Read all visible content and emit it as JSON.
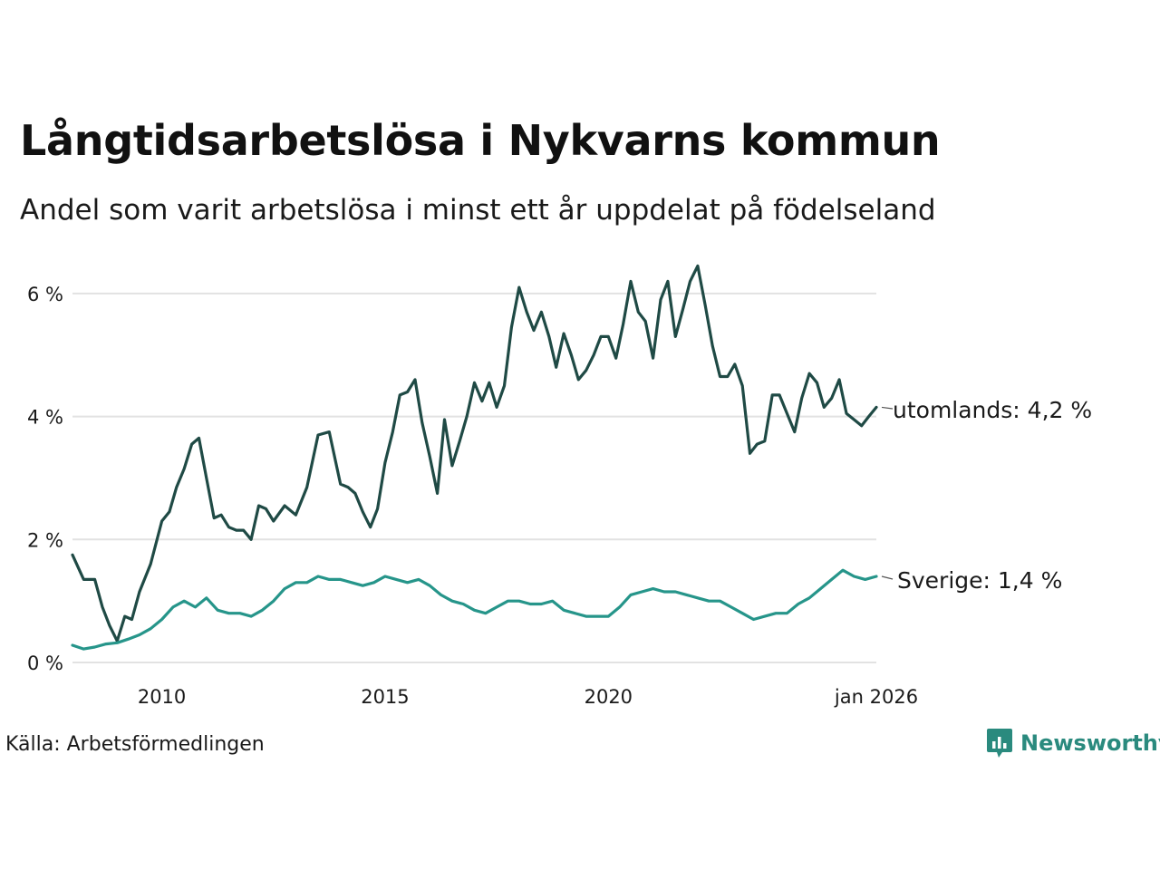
{
  "title": "Långtidsarbetslösa i Nykvarns kommun",
  "subtitle": "Andel som varit arbetslösa i minst ett år uppdelat på födelseland",
  "source": "Källa: Arbetsförmedlingen",
  "brand": {
    "name": "Newsworthy",
    "icon": "bar-chart-speech-bubble-icon",
    "color": "#2a8a7e"
  },
  "chart_data": {
    "type": "line",
    "title": "Långtidsarbetslösa i Nykvarns kommun",
    "subtitle": "Andel som varit arbetslösa i minst ett år uppdelat på födelseland",
    "xlabel": "",
    "ylabel": "",
    "x_unit": "year",
    "xlim": [
      2008.0,
      2026.0
    ],
    "ylim": [
      0,
      6.5
    ],
    "grid": true,
    "x_ticks": [
      {
        "value": 2010,
        "label": "2010"
      },
      {
        "value": 2015,
        "label": "2015"
      },
      {
        "value": 2020,
        "label": "2020"
      },
      {
        "value": 2026,
        "label": "jan 2026"
      }
    ],
    "y_ticks": [
      {
        "value": 0,
        "label": "0 %"
      },
      {
        "value": 2,
        "label": "2 %"
      },
      {
        "value": 4,
        "label": "4 %"
      },
      {
        "value": 6,
        "label": "6 %"
      }
    ],
    "series": [
      {
        "name": "utomlands",
        "label": "utomlands: 4,2 %",
        "color": "#1f4a45",
        "x": [
          2008.0,
          2008.25,
          2008.5,
          2008.67,
          2008.83,
          2009.0,
          2009.17,
          2009.33,
          2009.5,
          2009.75,
          2010.0,
          2010.17,
          2010.33,
          2010.5,
          2010.67,
          2010.83,
          2011.0,
          2011.17,
          2011.33,
          2011.5,
          2011.67,
          2011.83,
          2012.0,
          2012.17,
          2012.33,
          2012.5,
          2012.75,
          2013.0,
          2013.25,
          2013.5,
          2013.75,
          2014.0,
          2014.17,
          2014.33,
          2014.5,
          2014.67,
          2014.83,
          2015.0,
          2015.17,
          2015.33,
          2015.5,
          2015.67,
          2015.83,
          2016.0,
          2016.17,
          2016.33,
          2016.5,
          2016.67,
          2016.83,
          2017.0,
          2017.17,
          2017.33,
          2017.5,
          2017.67,
          2017.83,
          2018.0,
          2018.17,
          2018.33,
          2018.5,
          2018.67,
          2018.83,
          2019.0,
          2019.17,
          2019.33,
          2019.5,
          2019.67,
          2019.83,
          2020.0,
          2020.17,
          2020.33,
          2020.5,
          2020.67,
          2020.83,
          2021.0,
          2021.17,
          2021.33,
          2021.5,
          2021.67,
          2021.83,
          2022.0,
          2022.17,
          2022.33,
          2022.5,
          2022.67,
          2022.83,
          2023.0,
          2023.17,
          2023.33,
          2023.5,
          2023.67,
          2023.83,
          2024.0,
          2024.17,
          2024.33,
          2024.5,
          2024.67,
          2024.83,
          2025.0,
          2025.17,
          2025.33,
          2025.5,
          2025.67,
          2025.83,
          2026.0
        ],
        "values": [
          1.75,
          1.35,
          1.35,
          0.9,
          0.6,
          0.35,
          0.75,
          0.7,
          1.15,
          1.6,
          2.3,
          2.45,
          2.85,
          3.15,
          3.55,
          3.65,
          3.0,
          2.35,
          2.4,
          2.2,
          2.15,
          2.15,
          2.0,
          2.55,
          2.5,
          2.3,
          2.55,
          2.4,
          2.85,
          3.7,
          3.75,
          2.9,
          2.85,
          2.75,
          2.45,
          2.2,
          2.5,
          3.25,
          3.75,
          4.35,
          4.4,
          4.6,
          3.9,
          3.35,
          2.75,
          3.95,
          3.2,
          3.6,
          4.0,
          4.55,
          4.25,
          4.55,
          4.15,
          4.5,
          5.45,
          6.1,
          5.7,
          5.4,
          5.7,
          5.3,
          4.8,
          5.35,
          5.0,
          4.6,
          4.75,
          5.0,
          5.3,
          5.3,
          4.95,
          5.5,
          6.2,
          5.7,
          5.55,
          4.95,
          5.9,
          6.2,
          5.3,
          5.75,
          6.2,
          6.45,
          5.8,
          5.15,
          4.65,
          4.65,
          4.85,
          4.5,
          3.4,
          3.55,
          3.6,
          4.35,
          4.35,
          4.05,
          3.75,
          4.3,
          4.7,
          4.55,
          4.15,
          4.3,
          4.6,
          4.05,
          3.95,
          3.85,
          4.0,
          4.15
        ]
      },
      {
        "name": "Sverige",
        "label": "Sverige: 1,4 %",
        "color": "#26958a",
        "x": [
          2008.0,
          2008.25,
          2008.5,
          2008.75,
          2009.0,
          2009.25,
          2009.5,
          2009.75,
          2010.0,
          2010.25,
          2010.5,
          2010.75,
          2011.0,
          2011.25,
          2011.5,
          2011.75,
          2012.0,
          2012.25,
          2012.5,
          2012.75,
          2013.0,
          2013.25,
          2013.5,
          2013.75,
          2014.0,
          2014.25,
          2014.5,
          2014.75,
          2015.0,
          2015.25,
          2015.5,
          2015.75,
          2016.0,
          2016.25,
          2016.5,
          2016.75,
          2017.0,
          2017.25,
          2017.5,
          2017.75,
          2018.0,
          2018.25,
          2018.5,
          2018.75,
          2019.0,
          2019.25,
          2019.5,
          2019.75,
          2020.0,
          2020.25,
          2020.5,
          2020.75,
          2021.0,
          2021.25,
          2021.5,
          2021.75,
          2022.0,
          2022.25,
          2022.5,
          2022.75,
          2023.0,
          2023.25,
          2023.5,
          2023.75,
          2024.0,
          2024.25,
          2024.5,
          2024.75,
          2025.0,
          2025.25,
          2025.5,
          2025.75,
          2026.0
        ],
        "values": [
          0.28,
          0.22,
          0.25,
          0.3,
          0.32,
          0.38,
          0.45,
          0.55,
          0.7,
          0.9,
          1.0,
          0.9,
          1.05,
          0.85,
          0.8,
          0.8,
          0.75,
          0.85,
          1.0,
          1.2,
          1.3,
          1.3,
          1.4,
          1.35,
          1.35,
          1.3,
          1.25,
          1.3,
          1.4,
          1.35,
          1.3,
          1.35,
          1.25,
          1.1,
          1.0,
          0.95,
          0.85,
          0.8,
          0.9,
          1.0,
          1.0,
          0.95,
          0.95,
          1.0,
          0.85,
          0.8,
          0.75,
          0.75,
          0.75,
          0.9,
          1.1,
          1.15,
          1.2,
          1.15,
          1.15,
          1.1,
          1.05,
          1.0,
          1.0,
          0.9,
          0.8,
          0.7,
          0.75,
          0.8,
          0.8,
          0.95,
          1.05,
          1.2,
          1.35,
          1.5,
          1.4,
          1.35,
          1.4
        ]
      }
    ]
  }
}
